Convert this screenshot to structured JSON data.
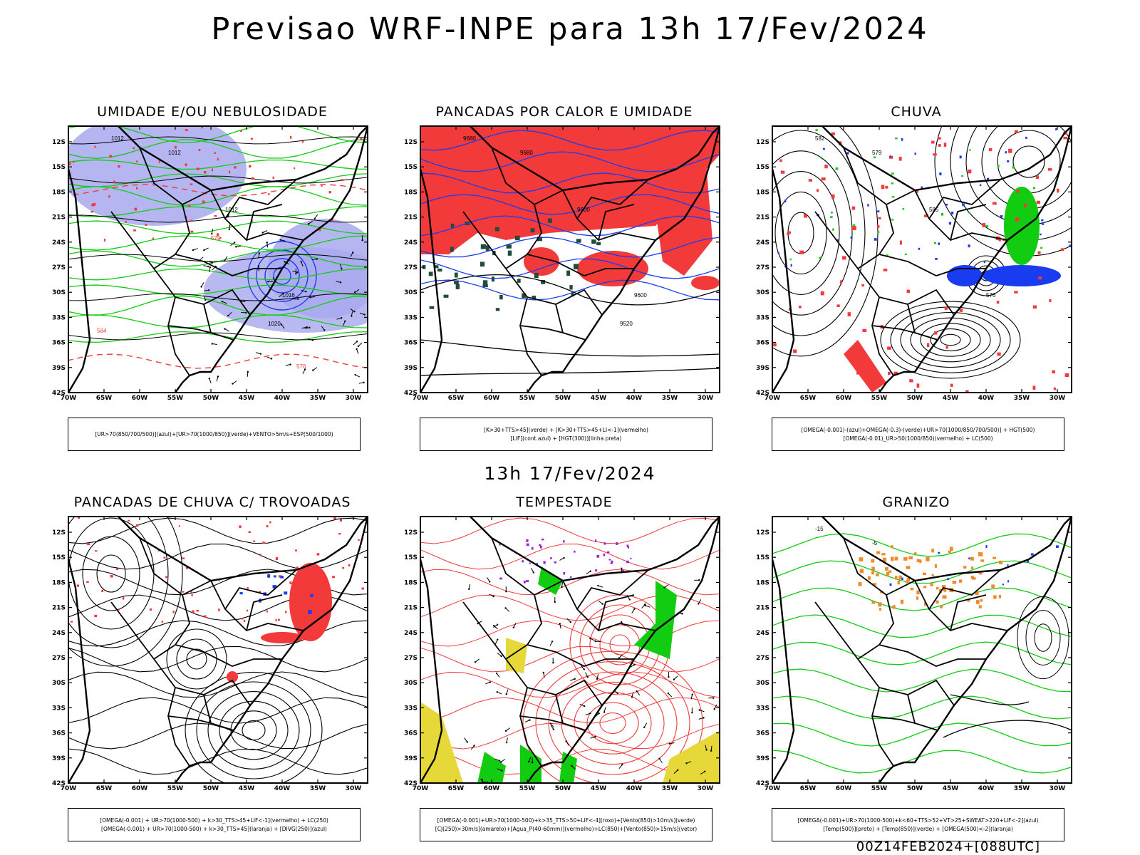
{
  "header": {
    "title": "Previsao WRF-INPE  para 13h 17/Fev/2024"
  },
  "mid_date": "13h 17/Fev/2024",
  "footer": "00Z14FEB2024+[088UTC]",
  "axes": {
    "lat_labels": [
      "12S",
      "15S",
      "18S",
      "21S",
      "24S",
      "27S",
      "30S",
      "33S",
      "36S",
      "39S",
      "42S"
    ],
    "lon_labels": [
      "70W",
      "65W",
      "60W",
      "55W",
      "50W",
      "45W",
      "40W",
      "35W",
      "30W"
    ]
  },
  "colors": {
    "red": "#f23a3a",
    "green": "#11cc11",
    "blue": "#1a3cf0",
    "lavender": "#a8a8ee",
    "yellow": "#e6d838",
    "orange": "#f08a2c",
    "purple": "#9a22d6",
    "darkgreen": "#1f4d3a"
  },
  "panels": [
    {
      "title": "UMIDADE E/OU NEBULOSIDADE",
      "legend": [
        "[UR>70(850/700/500)](azul)+[UR>70(1000/850)](verde)+VENTO>5m/s+ESP(500/1000)"
      ],
      "contour_labels": [
        "1012",
        "1012",
        "1012",
        "1016",
        "1020",
        "576",
        "579",
        "564"
      ]
    },
    {
      "title": "PANCADAS POR CALOR E UMIDADE",
      "legend": [
        "[K>30+TTS>45](verde) + [K>30+TTS>45+LI<-1](vermelho)",
        "[LIF](cont.azul) + [HGT(300)](linha preta)"
      ],
      "contour_labels": [
        "9680",
        "9680",
        "9600",
        "9600",
        "9520"
      ]
    },
    {
      "title": "CHUVA",
      "legend": [
        "[OMEGA(-0.001)-(azul)+OMEGA(-0.3)-(verde)+UR>70(1000/850/700/500)] + HGT(500)",
        "[OMEGA(-0.01)_UR>50(1000/850)(vermelho) + LC(500)"
      ],
      "contour_labels": [
        "582",
        "579",
        "585",
        "576"
      ]
    },
    {
      "title": "PANCADAS DE CHUVA C/ TROVOADAS",
      "legend": [
        "[OMEGA(-0.001) + UR>70(1000-500) + k>30_TTS>45+LIF<-1](vermelho) + LC(250)",
        "[OMEGA(-0.001) + UR>70(1000-500) + k>30_TTS>45](laranja) + [DIVG(250)](azul)"
      ],
      "contour_labels": []
    },
    {
      "title": "TEMPESTADE",
      "legend": [
        "[OMEGA(-0.001)+UR>70(1000-500)+k>35_TTS>50+LIF<-4](roxo)+[Vento(850)>10m/s](verde)",
        "[CJ(250)>30m/s](amarelo)+[Agua_P(40-60mm)](vermelho)+LC(850)+[Vento(850)>15m/s](vetor)"
      ],
      "contour_labels": []
    },
    {
      "title": "GRANIZO",
      "legend": [
        "[OMEGA(-0.001)+UR>70(1000-500)+k<60+TTS>52+VT>25+SWEAT>220+LIF<-2](azul)",
        "[Temp(500)](preto) + [Temp(850)](verde) + [OMEGA(500)<-2](laranja)"
      ],
      "contour_labels": [
        "-15",
        "-5"
      ]
    }
  ]
}
